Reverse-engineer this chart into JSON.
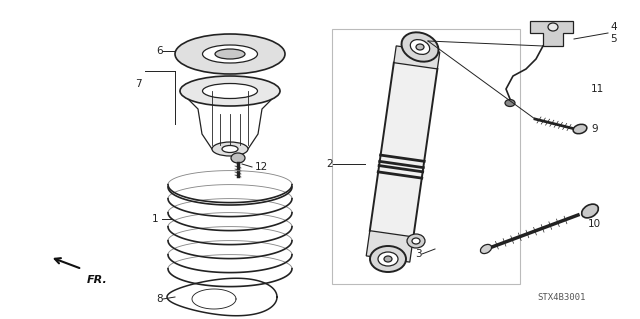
{
  "bg_color": "#ffffff",
  "line_color": "#222222",
  "gray1": "#cccccc",
  "gray2": "#e8e8e8",
  "gray3": "#aaaaaa",
  "watermark": "STX4B3001",
  "figsize": [
    6.4,
    3.19
  ],
  "dpi": 100
}
